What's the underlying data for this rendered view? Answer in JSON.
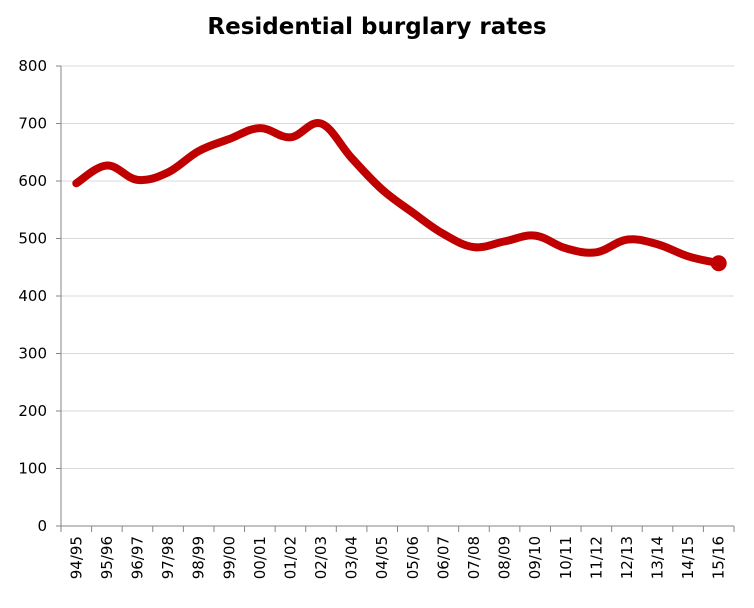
{
  "chart_data": {
    "type": "line",
    "title": "Residential burglary rates",
    "xlabel": "",
    "ylabel": "",
    "categories": [
      "94/95",
      "95/96",
      "96/97",
      "97/98",
      "98/99",
      "99/00",
      "00/01",
      "01/02",
      "02/03",
      "03/04",
      "04/05",
      "05/06",
      "06/07",
      "07/08",
      "08/09",
      "09/10",
      "10/11",
      "11/12",
      "12/13",
      "13/14",
      "14/15",
      "15/16"
    ],
    "series": [
      {
        "values": [
          596,
          627,
          602,
          615,
          652,
          673,
          692,
          676,
          700,
          640,
          585,
          545,
          508,
          485,
          495,
          505,
          483,
          476,
          498,
          490,
          469,
          457
        ],
        "color": "#c00000"
      }
    ],
    "ylim": [
      0,
      800
    ],
    "yticks": [
      0,
      100,
      200,
      300,
      400,
      500,
      600,
      700,
      800
    ],
    "grid": true,
    "legend": "none",
    "last_point_marker": true
  }
}
